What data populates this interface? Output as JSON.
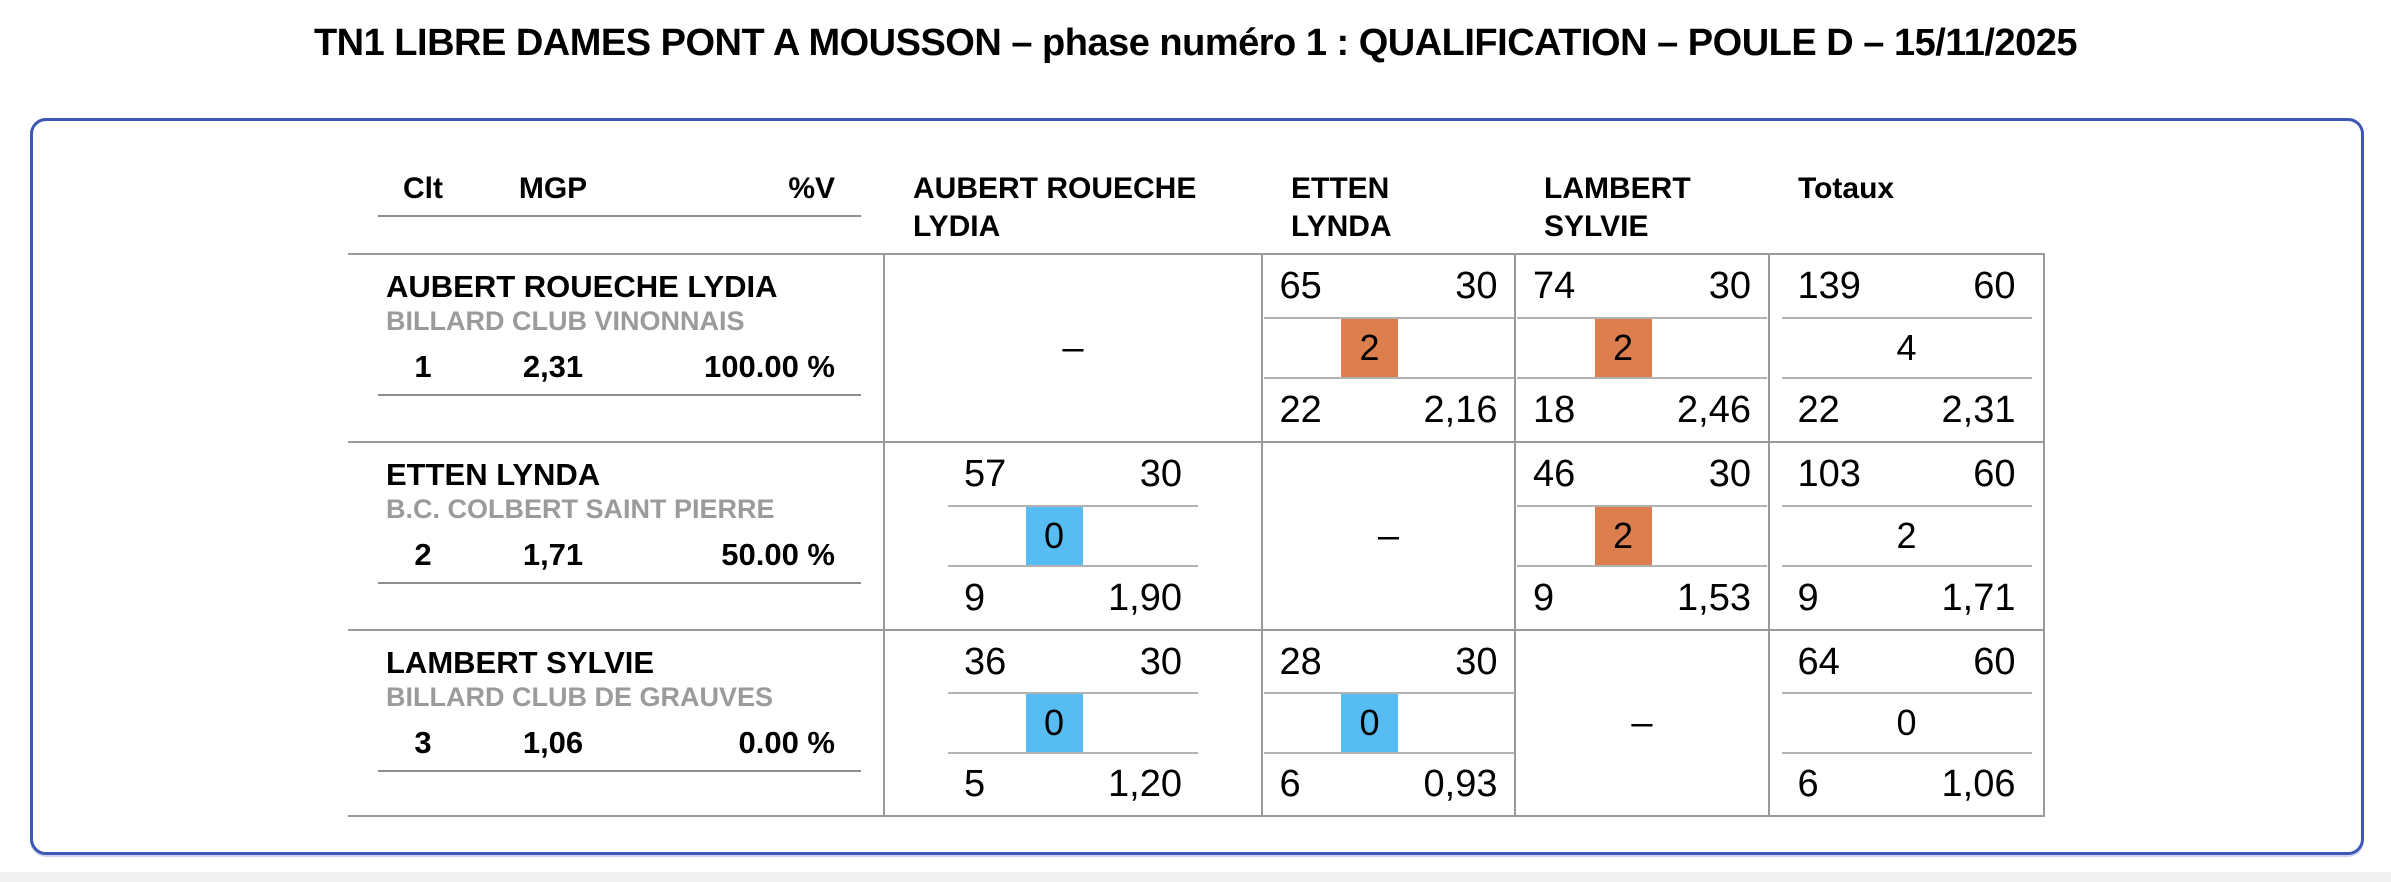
{
  "title": "TN1 LIBRE DAMES PONT A MOUSSON – phase numéro 1 : QUALIFICATION – POULE D – 15/11/2025",
  "dash": "–",
  "colors": {
    "win_box": "#dd7e4e",
    "loss_box": "#56bcf2",
    "frame_border": "#3c57b5",
    "club_text": "#9b9b9b"
  },
  "header": {
    "clt": "Clt",
    "mgp": "MGP",
    "pv": "%V",
    "opponents": [
      "AUBERT ROUECHE LYDIA",
      "ETTEN LYNDA",
      "LAMBERT SYLVIE"
    ],
    "totals": "Totaux"
  },
  "rows": [
    {
      "player": "AUBERT ROUECHE LYDIA",
      "club": "BILLARD CLUB VINONNAIS",
      "clt": "1",
      "mgp": "2,31",
      "pv": "100.00 %",
      "matches": [
        {
          "self": true
        },
        {
          "points": "65",
          "innings": "30",
          "mp": "2",
          "result": "win",
          "serie": "22",
          "avg": "2,16"
        },
        {
          "points": "74",
          "innings": "30",
          "mp": "2",
          "result": "win",
          "serie": "18",
          "avg": "2,46"
        }
      ],
      "totals": {
        "points": "139",
        "innings": "60",
        "mp": "4",
        "serie": "22",
        "avg": "2,31"
      }
    },
    {
      "player": "ETTEN LYNDA",
      "club": "B.C. COLBERT SAINT PIERRE",
      "clt": "2",
      "mgp": "1,71",
      "pv": "50.00 %",
      "matches": [
        {
          "points": "57",
          "innings": "30",
          "mp": "0",
          "result": "loss",
          "serie": "9",
          "avg": "1,90"
        },
        {
          "self": true
        },
        {
          "points": "46",
          "innings": "30",
          "mp": "2",
          "result": "win",
          "serie": "9",
          "avg": "1,53"
        }
      ],
      "totals": {
        "points": "103",
        "innings": "60",
        "mp": "2",
        "serie": "9",
        "avg": "1,71"
      }
    },
    {
      "player": "LAMBERT SYLVIE",
      "club": "BILLARD CLUB DE GRAUVES",
      "clt": "3",
      "mgp": "1,06",
      "pv": "0.00 %",
      "matches": [
        {
          "points": "36",
          "innings": "30",
          "mp": "0",
          "result": "loss",
          "serie": "5",
          "avg": "1,20"
        },
        {
          "points": "28",
          "innings": "30",
          "mp": "0",
          "result": "loss",
          "serie": "6",
          "avg": "0,93"
        },
        {
          "self": true
        }
      ],
      "totals": {
        "points": "64",
        "innings": "60",
        "mp": "0",
        "serie": "6",
        "avg": "1,06"
      }
    }
  ]
}
